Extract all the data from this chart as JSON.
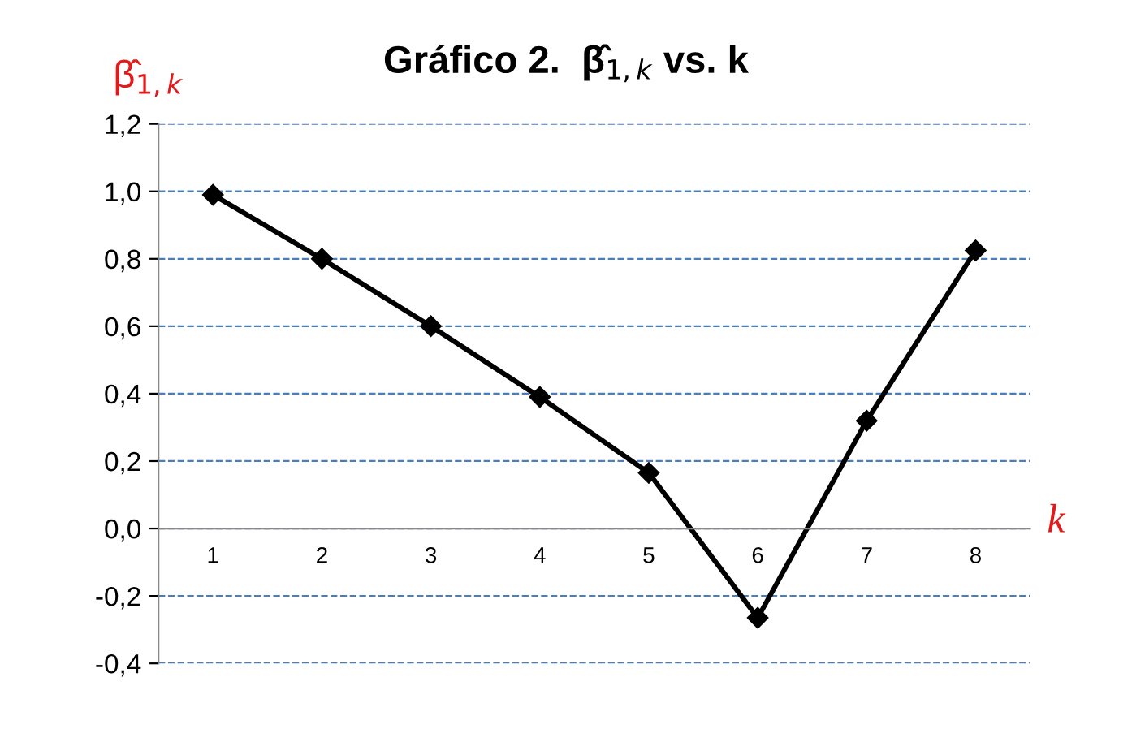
{
  "chart_data": {
    "type": "line",
    "title": "Gráfico 2.  β̂$_{1,k}$ vs. k",
    "ylabel": "β̂$_{1,k}$",
    "xlabel": "k",
    "categories": [
      "1",
      "2",
      "3",
      "4",
      "5",
      "6",
      "7",
      "8"
    ],
    "series": [
      {
        "color": "#000000",
        "values": [
          0.99,
          0.8,
          0.6,
          0.39,
          0.165,
          -0.265,
          0.32,
          0.825
        ]
      }
    ],
    "ylim": [
      -0.4,
      1.2
    ],
    "yticks": [
      {
        "value": -0.4,
        "label": "-0,4"
      },
      {
        "value": -0.2,
        "label": "-0,2"
      },
      {
        "value": 0,
        "label": "0,0"
      },
      {
        "value": 0.2,
        "label": "0,2"
      },
      {
        "value": 0.4,
        "label": "0,4"
      },
      {
        "value": 0.6,
        "label": "0,6"
      },
      {
        "value": 0.8,
        "label": "0,8"
      },
      {
        "value": 1.0,
        "label": "1,0"
      },
      {
        "value": 1.2,
        "label": "1,2"
      }
    ],
    "grid": "y",
    "marker": "diamond",
    "line_style": "solid",
    "legend": false
  }
}
